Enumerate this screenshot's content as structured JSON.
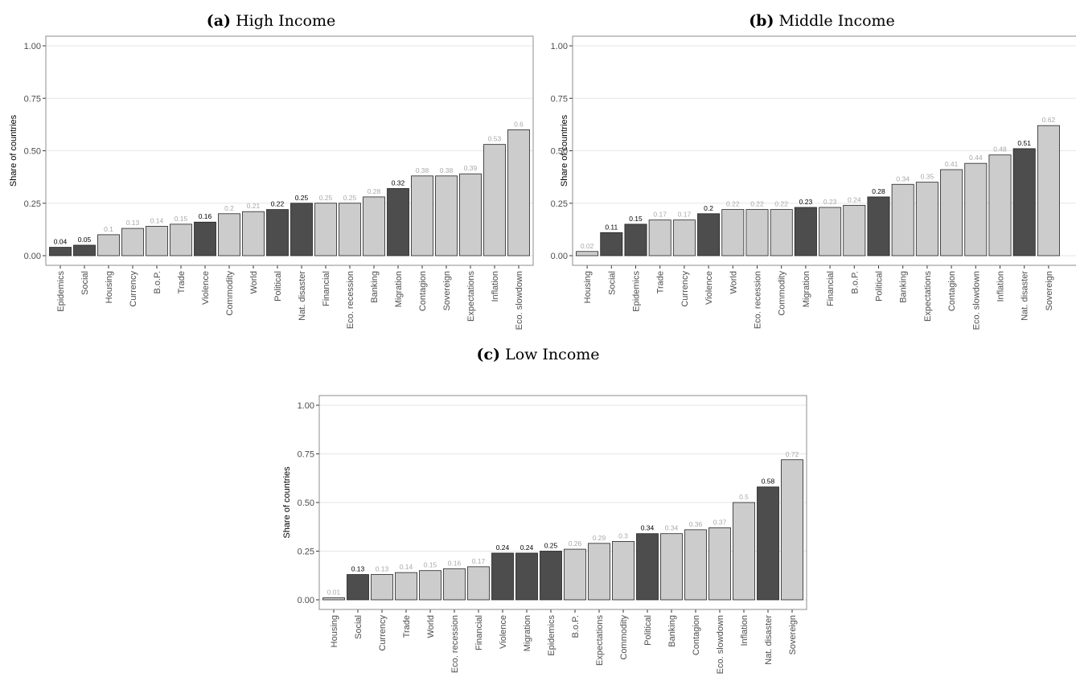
{
  "colors": {
    "highlight": "#4d4d4d",
    "normal": "#cccccc",
    "bar_outline": "#222222",
    "grid": "#e6e6e6",
    "frame": "#8c8c8c"
  },
  "chart_data": [
    {
      "type": "bar",
      "panel_label": "(a)",
      "title": "High Income",
      "xlabel": "",
      "ylabel": "Share of countries",
      "ylim": [
        0,
        1
      ],
      "yticks": [
        "0.00",
        "0.25",
        "0.50",
        "0.75",
        "1.00"
      ],
      "grid": true,
      "categories": [
        "Epidemics",
        "Social",
        "Housing",
        "Currency",
        "B.o.P.",
        "Trade",
        "Violence",
        "Commodity",
        "World",
        "Political",
        "Nat. disaster",
        "Financial",
        "Eco. recession",
        "Banking",
        "Migration",
        "Contagion",
        "Sovereign",
        "Expectations",
        "Inflation",
        "Eco. slowdown"
      ],
      "values": [
        0.04,
        0.05,
        0.1,
        0.13,
        0.14,
        0.15,
        0.16,
        0.2,
        0.21,
        0.22,
        0.25,
        0.25,
        0.25,
        0.28,
        0.32,
        0.38,
        0.38,
        0.39,
        0.53,
        0.6
      ],
      "value_labels": [
        "0.04",
        "0.05",
        "0.1",
        "0.13",
        "0.14",
        "0.15",
        "0.16",
        "0.2",
        "0.21",
        "0.22",
        "0.25",
        "0.25",
        "0.25",
        "0.28",
        "0.32",
        "0.38",
        "0.38",
        "0.39",
        "0.53",
        "0.6"
      ],
      "highlighted": [
        true,
        true,
        false,
        false,
        false,
        false,
        true,
        false,
        false,
        true,
        true,
        false,
        false,
        false,
        true,
        false,
        false,
        false,
        false,
        false
      ]
    },
    {
      "type": "bar",
      "panel_label": "(b)",
      "title": "Middle Income",
      "xlabel": "",
      "ylabel": "Share of countries",
      "ylim": [
        0,
        1
      ],
      "yticks": [
        "0.00",
        "0.25",
        "0.50",
        "0.75",
        "1.00"
      ],
      "grid": true,
      "categories": [
        "Housing",
        "Social",
        "Epidemics",
        "Trade",
        "Currency",
        "Violence",
        "World",
        "Eco. recession",
        "Commodity",
        "Migration",
        "Financial",
        "B.o.P.",
        "Political",
        "Banking",
        "Expectations",
        "Contagion",
        "Eco. slowdown",
        "Inflation",
        "Nat. disaster",
        "Sovereign"
      ],
      "values": [
        0.02,
        0.11,
        0.15,
        0.17,
        0.17,
        0.2,
        0.22,
        0.22,
        0.22,
        0.23,
        0.23,
        0.24,
        0.28,
        0.34,
        0.35,
        0.41,
        0.44,
        0.48,
        0.51,
        0.62
      ],
      "value_labels": [
        "0.02",
        "0.11",
        "0.15",
        "0.17",
        "0.17",
        "0.2",
        "0.22",
        "0.22",
        "0.22",
        "0.23",
        "0.23",
        "0.24",
        "0.28",
        "0.34",
        "0.35",
        "0.41",
        "0.44",
        "0.48",
        "0.51",
        "0.62"
      ],
      "highlighted": [
        false,
        true,
        true,
        false,
        false,
        true,
        false,
        false,
        false,
        true,
        false,
        false,
        true,
        false,
        false,
        false,
        false,
        false,
        true,
        false
      ]
    },
    {
      "type": "bar",
      "panel_label": "(c)",
      "title": "Low Income",
      "xlabel": "",
      "ylabel": "Share of countries",
      "ylim": [
        0,
        1
      ],
      "yticks": [
        "0.00",
        "0.25",
        "0.50",
        "0.75",
        "1.00"
      ],
      "grid": true,
      "categories": [
        "Housing",
        "Social",
        "Currency",
        "Trade",
        "World",
        "Eco. recession",
        "Financial",
        "Violence",
        "Migration",
        "Epidemics",
        "B.o.P.",
        "Expectations",
        "Commodity",
        "Political",
        "Banking",
        "Contagion",
        "Eco. slowdown",
        "Inflation",
        "Nat. disaster",
        "Sovereign"
      ],
      "values": [
        0.01,
        0.13,
        0.13,
        0.14,
        0.15,
        0.16,
        0.17,
        0.24,
        0.24,
        0.25,
        0.26,
        0.29,
        0.3,
        0.34,
        0.34,
        0.36,
        0.37,
        0.5,
        0.58,
        0.72
      ],
      "value_labels": [
        "0.01",
        "0.13",
        "0.13",
        "0.14",
        "0.15",
        "0.16",
        "0.17",
        "0.24",
        "0.24",
        "0.25",
        "0.26",
        "0.29",
        "0.3",
        "0.34",
        "0.34",
        "0.36",
        "0.37",
        "0.5",
        "0.58",
        "0.72"
      ],
      "highlighted": [
        false,
        true,
        false,
        false,
        false,
        false,
        false,
        true,
        true,
        true,
        false,
        false,
        false,
        true,
        false,
        false,
        false,
        false,
        true,
        false
      ]
    }
  ]
}
